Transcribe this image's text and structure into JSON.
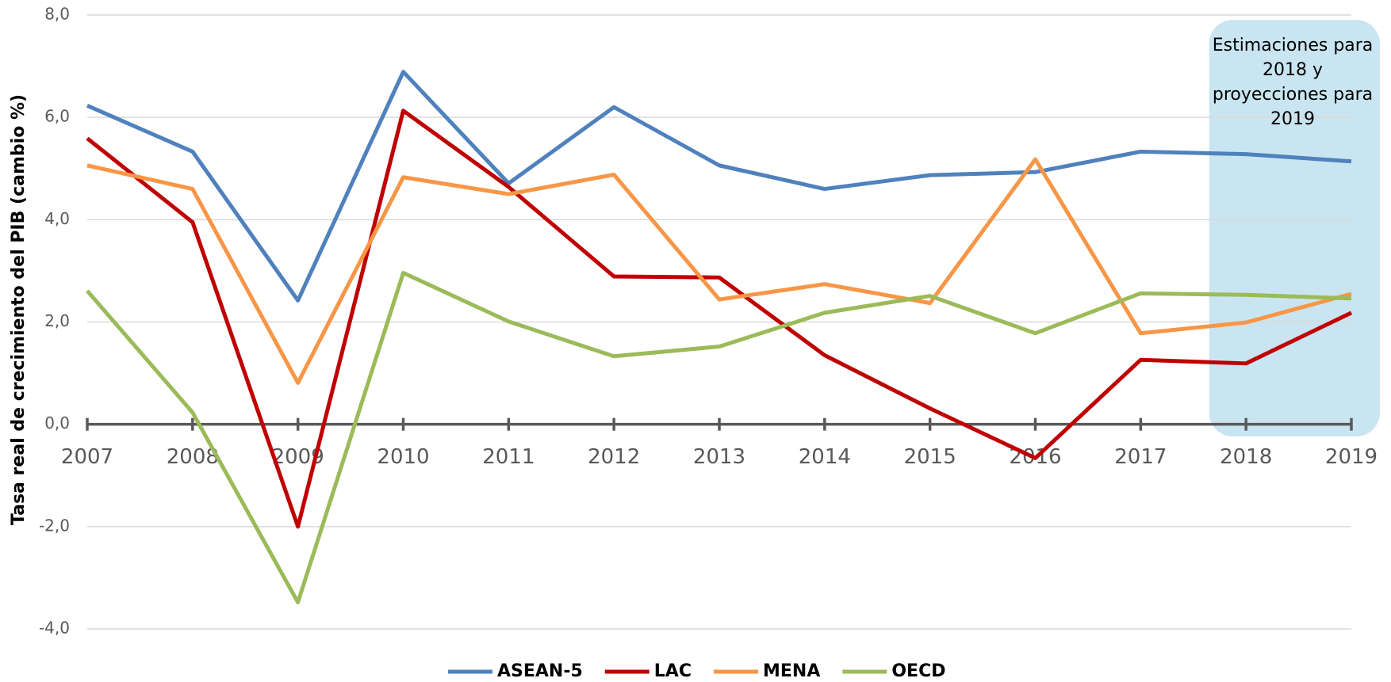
{
  "chart_data": {
    "type": "line",
    "y_label": "Tasa real de crecimiento del PIB (cambio %)",
    "annotation": [
      "Estimaciones para",
      "2018 y",
      "proyecciones para",
      "2019"
    ],
    "categories": [
      "2007",
      "2008",
      "2009",
      "2010",
      "2011",
      "2012",
      "2013",
      "2014",
      "2015",
      "2016",
      "2017",
      "2018",
      "2019"
    ],
    "series": [
      {
        "name": "ASEAN-5",
        "color": "#4f81bd",
        "values": [
          6.23,
          5.33,
          2.42,
          6.89,
          4.71,
          6.2,
          5.06,
          4.6,
          4.87,
          4.93,
          5.33,
          5.28,
          5.14
        ]
      },
      {
        "name": "LAC",
        "color": "#c00000",
        "values": [
          5.59,
          3.95,
          -2.0,
          6.13,
          4.64,
          2.89,
          2.87,
          1.35,
          0.31,
          -0.66,
          1.26,
          1.19,
          2.18
        ]
      },
      {
        "name": "MENA",
        "color": "#f79646",
        "values": [
          5.06,
          4.6,
          0.81,
          4.83,
          4.5,
          4.88,
          2.44,
          2.74,
          2.37,
          5.18,
          1.78,
          1.99,
          2.55
        ]
      },
      {
        "name": "OECD",
        "color": "#9bbb59",
        "values": [
          2.61,
          0.23,
          -3.48,
          2.96,
          2.01,
          1.33,
          1.52,
          2.18,
          2.51,
          1.78,
          2.56,
          2.53,
          2.46
        ]
      }
    ],
    "ylim": [
      -4,
      8
    ],
    "yticks": [
      {
        "value": -4,
        "label": "-4,0"
      },
      {
        "value": -2,
        "label": "-2,0"
      },
      {
        "value": 0,
        "label": "0,0"
      },
      {
        "value": 2,
        "label": "2,0"
      },
      {
        "value": 4,
        "label": "4,0"
      },
      {
        "value": 6,
        "label": "6,0"
      },
      {
        "value": 8,
        "label": "8,0"
      }
    ],
    "grid": true,
    "legend": "bottom"
  }
}
